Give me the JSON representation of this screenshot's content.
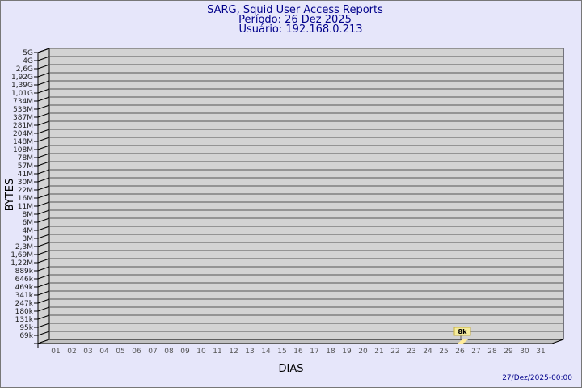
{
  "colors": {
    "background": "#e6e6fa",
    "plot": "#d3d3d3",
    "title": "#00008b",
    "bar": "#ffeb9a",
    "label_box": "#f4eb9c"
  },
  "chart_data": {
    "type": "bar",
    "title": "SARG, Squid User Access Reports",
    "subtitle1": "Período: 26 Dez 2025",
    "subtitle2": "Usuário: 192.168.0.213",
    "xlabel": "DIAS",
    "ylabel": "BYTES",
    "footer": "27/Dez/2025-00:00",
    "y_scale": "log",
    "grid": true,
    "y_ticks": [
      "5G",
      "4G",
      "2,6G",
      "1,92G",
      "1,39G",
      "1,01G",
      "734M",
      "533M",
      "387M",
      "281M",
      "204M",
      "148M",
      "108M",
      "78M",
      "57M",
      "41M",
      "30M",
      "22M",
      "16M",
      "11M",
      "8M",
      "6M",
      "4M",
      "3M",
      "2,3M",
      "1,69M",
      "1,22M",
      "889k",
      "646k",
      "469k",
      "341k",
      "247k",
      "180k",
      "131k",
      "95k",
      "69k"
    ],
    "categories": [
      "01",
      "02",
      "03",
      "04",
      "05",
      "06",
      "07",
      "08",
      "09",
      "10",
      "11",
      "12",
      "13",
      "14",
      "15",
      "16",
      "17",
      "18",
      "19",
      "20",
      "21",
      "22",
      "23",
      "24",
      "25",
      "26",
      "27",
      "28",
      "29",
      "30",
      "31"
    ],
    "bars": [
      {
        "category": "26",
        "value": "8k",
        "label": "8k"
      }
    ]
  }
}
